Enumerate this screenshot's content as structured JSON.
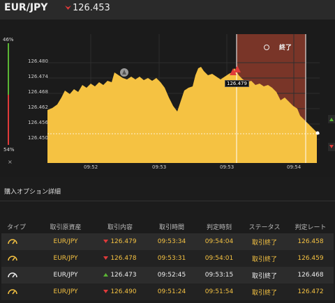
{
  "header": {
    "pair": "EUR/JPY",
    "price": "126.453",
    "direction": "down"
  },
  "chart": {
    "pct_top": "46%",
    "pct_bottom": "54%",
    "close_symbol": "×",
    "y_ticks": [
      "126.480",
      "126.474",
      "126.468",
      "126.462",
      "126.456",
      "126.450"
    ],
    "x_ticks": [
      "09:52",
      "09:53",
      "09:53",
      "09:54"
    ],
    "end_label": "終了",
    "marker_price": "126.479",
    "colors": {
      "area": "#f5c242",
      "end_zone": "#8a3a2a",
      "up": "#5ab534",
      "down": "#e03a3a"
    }
  },
  "section": {
    "title": "購入オプション詳細"
  },
  "table": {
    "headers": [
      "タイプ",
      "取引原資産",
      "取引内容",
      "取引時間",
      "判定時刻",
      "ステータス",
      "判定レート"
    ],
    "rows": [
      {
        "type_icon": "gauge-icon",
        "asset": "EUR/JPY",
        "dir": "down",
        "rate": "126.479",
        "time": "09:53:34",
        "judge": "09:54:04",
        "status": "取引終了",
        "result": "126.458",
        "color": "yellow"
      },
      {
        "type_icon": "gauge-icon",
        "asset": "EUR/JPY",
        "dir": "down",
        "rate": "126.478",
        "time": "09:53:31",
        "judge": "09:54:01",
        "status": "取引終了",
        "result": "126.459",
        "color": "yellow"
      },
      {
        "type_icon": "gauge-icon",
        "asset": "EUR/JPY",
        "dir": "up",
        "rate": "126.473",
        "time": "09:52:45",
        "judge": "09:53:15",
        "status": "取引終了",
        "result": "126.468",
        "color": "white"
      },
      {
        "type_icon": "gauge-icon",
        "asset": "EUR/JPY",
        "dir": "down",
        "rate": "126.490",
        "time": "09:51:24",
        "judge": "09:51:54",
        "status": "取引終了",
        "result": "126.472",
        "color": "yellow"
      }
    ]
  }
}
